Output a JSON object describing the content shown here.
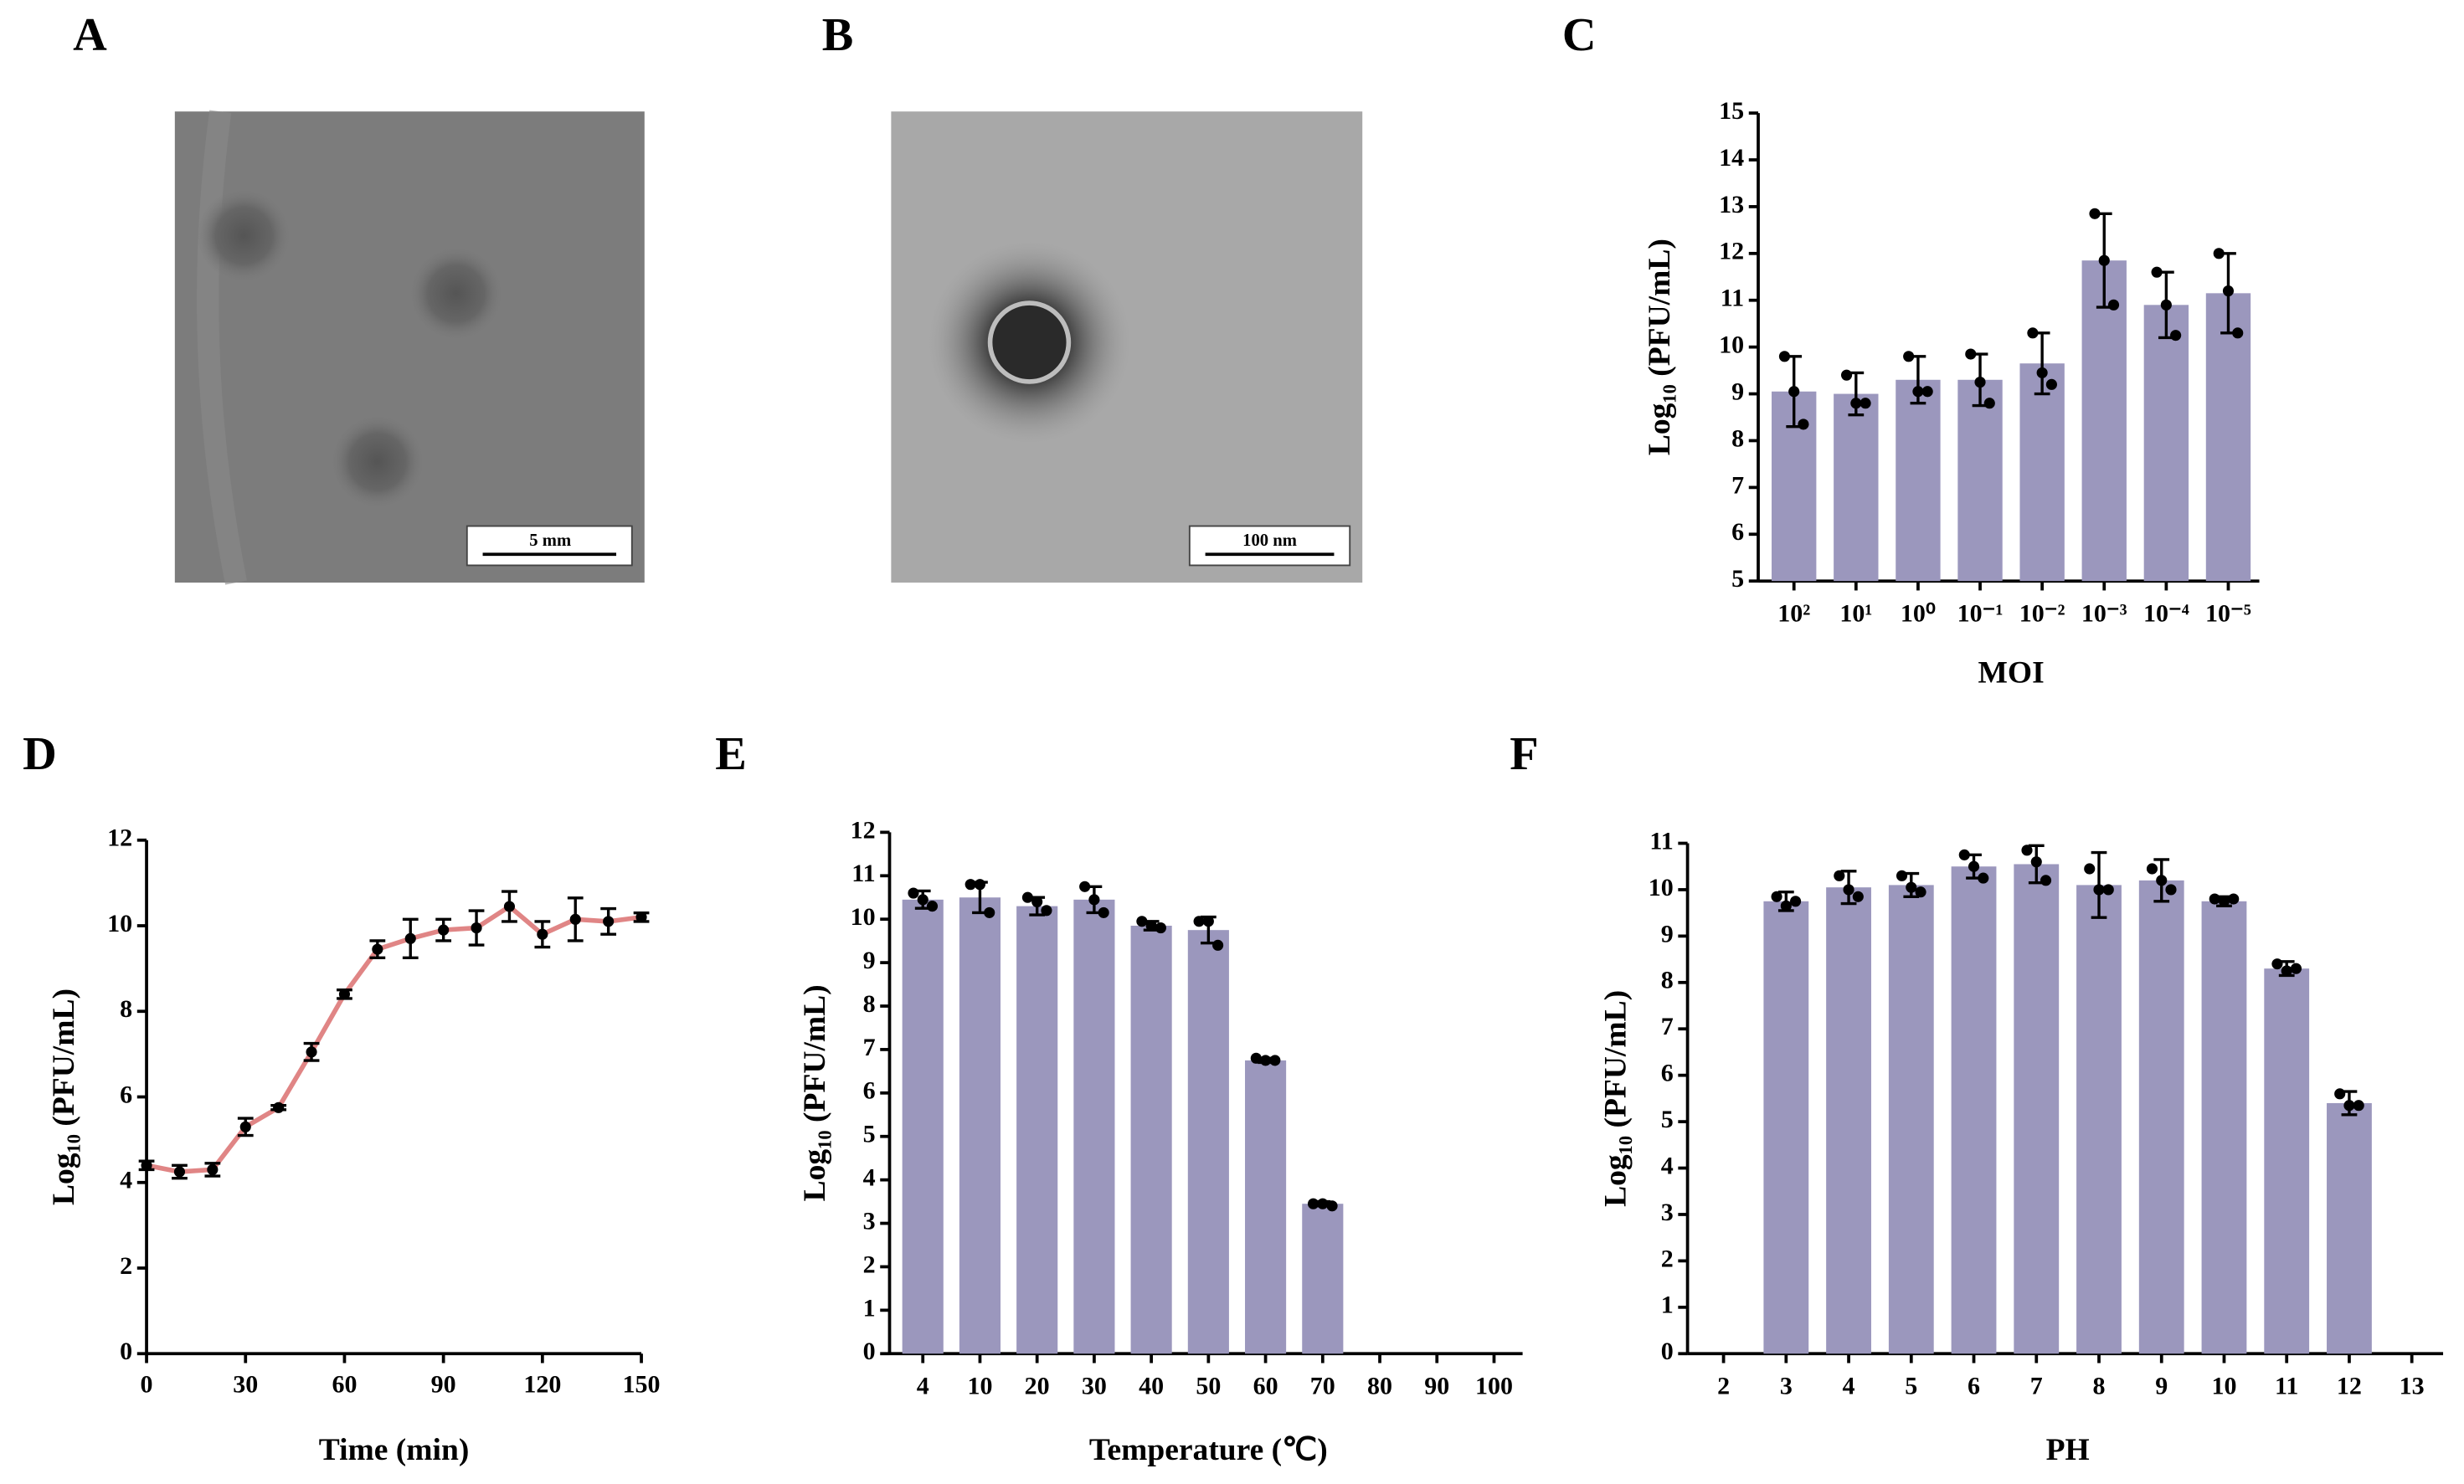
{
  "figure": {
    "panel_labels": [
      "A",
      "B",
      "C",
      "D",
      "E",
      "F"
    ],
    "images": [
      {
        "scale_bar": "5 mm"
      },
      {
        "scale_bar": "100 nm"
      }
    ]
  },
  "chart_data": [
    {
      "type": "bar",
      "categories": [
        "10²",
        "10¹",
        "10⁰",
        "10⁻¹",
        "10⁻²",
        "10⁻³",
        "10⁻⁴",
        "10⁻⁵"
      ],
      "values": [
        9.05,
        9.0,
        9.3,
        9.3,
        9.65,
        11.85,
        10.9,
        11.15
      ],
      "errors": [
        0.75,
        0.45,
        0.5,
        0.55,
        0.65,
        1.0,
        0.7,
        0.85
      ],
      "points": [
        [
          9.8,
          9.05,
          8.35
        ],
        [
          9.4,
          8.8,
          8.8
        ],
        [
          9.8,
          9.05,
          9.05
        ],
        [
          9.85,
          9.25,
          8.8
        ],
        [
          10.3,
          9.45,
          9.2
        ],
        [
          12.85,
          11.85,
          10.9
        ],
        [
          11.6,
          10.9,
          10.25
        ],
        [
          12.0,
          11.2,
          10.3
        ]
      ],
      "color": "#9b97bd",
      "xlabel": "MOI",
      "ylabel": "Log₁₀ (PFU/mL)",
      "ylim": [
        5,
        15
      ],
      "yticks": [
        5,
        6,
        7,
        8,
        9,
        10,
        11,
        12,
        13,
        14,
        15
      ]
    },
    {
      "type": "line",
      "x": [
        0,
        10,
        20,
        30,
        40,
        50,
        60,
        70,
        80,
        90,
        100,
        110,
        120,
        130,
        140,
        150
      ],
      "values": [
        4.4,
        4.25,
        4.3,
        5.3,
        5.75,
        7.05,
        8.4,
        9.45,
        9.7,
        9.9,
        9.95,
        10.45,
        9.8,
        10.15,
        10.1,
        10.2
      ],
      "errors": [
        0.1,
        0.15,
        0.15,
        0.2,
        0.05,
        0.2,
        0.1,
        0.2,
        0.45,
        0.25,
        0.4,
        0.35,
        0.3,
        0.5,
        0.3,
        0.1
      ],
      "color": "#e08585",
      "xlabel": "Time (min)",
      "ylabel": "Log₁₀ (PFU/mL)",
      "xlim": [
        0,
        150
      ],
      "xticks": [
        0,
        30,
        60,
        90,
        120,
        150
      ],
      "ylim": [
        0,
        12
      ],
      "yticks": [
        0,
        2,
        4,
        6,
        8,
        10,
        12
      ]
    },
    {
      "type": "bar",
      "categories": [
        "4",
        "10",
        "20",
        "30",
        "40",
        "50",
        "60",
        "70",
        "80",
        "90",
        "100"
      ],
      "values": [
        10.45,
        10.5,
        10.3,
        10.45,
        9.85,
        9.75,
        6.75,
        3.45,
        null,
        null,
        null
      ],
      "errors": [
        0.2,
        0.35,
        0.2,
        0.3,
        0.1,
        0.3,
        0.05,
        0.05,
        null,
        null,
        null
      ],
      "points": [
        [
          10.6,
          10.45,
          10.3
        ],
        [
          10.8,
          10.8,
          10.15
        ],
        [
          10.5,
          10.4,
          10.2
        ],
        [
          10.75,
          10.45,
          10.15
        ],
        [
          9.95,
          9.85,
          9.8
        ],
        [
          9.95,
          9.95,
          9.4
        ],
        [
          6.8,
          6.75,
          6.75
        ],
        [
          3.45,
          3.45,
          3.4
        ],
        null,
        null,
        null
      ],
      "color": "#9b97bd",
      "xlabel": "Temperature (℃)",
      "ylabel": "Log₁₀ (PFU/mL)",
      "ylim": [
        0,
        12
      ],
      "yticks": [
        0,
        1,
        2,
        3,
        4,
        5,
        6,
        7,
        8,
        9,
        10,
        11,
        12
      ]
    },
    {
      "type": "bar",
      "categories": [
        "2",
        "3",
        "4",
        "5",
        "6",
        "7",
        "8",
        "9",
        "10",
        "11",
        "12",
        "13"
      ],
      "values": [
        null,
        9.75,
        10.05,
        10.1,
        10.5,
        10.55,
        10.1,
        10.2,
        9.75,
        8.3,
        5.4,
        null
      ],
      "errors": [
        null,
        0.2,
        0.35,
        0.25,
        0.25,
        0.4,
        0.7,
        0.45,
        0.1,
        0.15,
        0.25,
        null
      ],
      "points": [
        null,
        [
          9.85,
          9.65,
          9.75
        ],
        [
          10.3,
          10.0,
          9.85
        ],
        [
          10.3,
          10.05,
          9.95
        ],
        [
          10.75,
          10.5,
          10.25
        ],
        [
          10.85,
          10.6,
          10.2
        ],
        [
          10.45,
          10.0,
          10.0
        ],
        [
          10.45,
          10.2,
          10.0
        ],
        [
          9.8,
          9.75,
          9.8
        ],
        [
          8.4,
          8.25,
          8.3
        ],
        [
          5.6,
          5.35,
          5.35
        ],
        null
      ],
      "color": "#9b97bd",
      "xlabel": "PH",
      "ylabel": "Log₁₀ (PFU/mL)",
      "ylim": [
        0,
        11
      ],
      "yticks": [
        0,
        1,
        2,
        3,
        4,
        5,
        6,
        7,
        8,
        9,
        10,
        11
      ]
    }
  ]
}
